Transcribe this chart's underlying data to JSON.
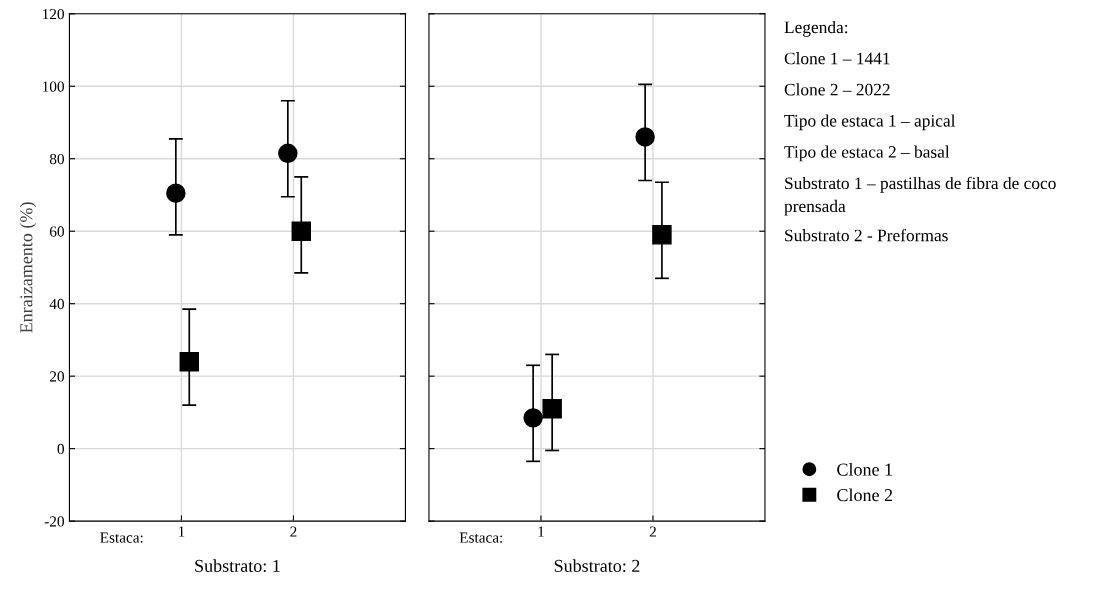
{
  "chart_data": [
    {
      "type": "scatter",
      "xlabel": "Substrato: 1",
      "ylabel": "Enraizamento (%)",
      "xlim": [
        0,
        3
      ],
      "xticks": [
        1,
        2
      ],
      "ylim": [
        -20,
        120
      ],
      "yticks": [
        -20,
        0,
        20,
        40,
        60,
        80,
        100,
        120
      ],
      "grid": true,
      "legend": false,
      "annotations": [
        "Estaca:"
      ],
      "series": [
        {
          "color": "#000000",
          "marker": "circle",
          "x": [
            0.95,
            1.95
          ],
          "values": [
            70.5,
            81.5
          ],
          "errors": [
            [
              59,
              85.5
            ],
            [
              69.5,
              96
            ]
          ]
        },
        {
          "color": "#000000",
          "marker": "square",
          "x": [
            1.07,
            2.07
          ],
          "values": [
            24,
            60
          ],
          "errors": [
            [
              12,
              38.5
            ],
            [
              48.5,
              75
            ]
          ]
        }
      ]
    },
    {
      "type": "scatter",
      "xlabel": "Substrato: 2",
      "xlim": [
        0,
        3
      ],
      "xticks": [
        1,
        2
      ],
      "ylim": [
        -20,
        120
      ],
      "yticks": [
        -20,
        0,
        20,
        40,
        60,
        80,
        100,
        120
      ],
      "tick_labels": "x",
      "grid": true,
      "legend": "bottom right",
      "annotations": [
        "Estaca:",
        "Legenda:",
        "Clone 1 – 1441",
        "Clone 2 – 2022",
        "Tipo de estaca 1 – apical",
        "Tipo de estaca 2 – basal",
        "Substrato 1 – pastilhas de fibra de coco prensada",
        "Substrato 2 - Preformas"
      ],
      "series": [
        {
          "name": "Clone 1",
          "color": "#000000",
          "marker": "circle",
          "x": [
            0.93,
            1.93
          ],
          "values": [
            8.5,
            86
          ],
          "errors": [
            [
              -3.5,
              23
            ],
            [
              74,
              100.5
            ]
          ]
        },
        {
          "name": "Clone 2",
          "color": "#000000",
          "marker": "square",
          "x": [
            1.1,
            2.08
          ],
          "values": [
            11,
            59
          ],
          "errors": [
            [
              -0.5,
              26
            ],
            [
              47,
              73.5
            ]
          ]
        }
      ]
    }
  ]
}
